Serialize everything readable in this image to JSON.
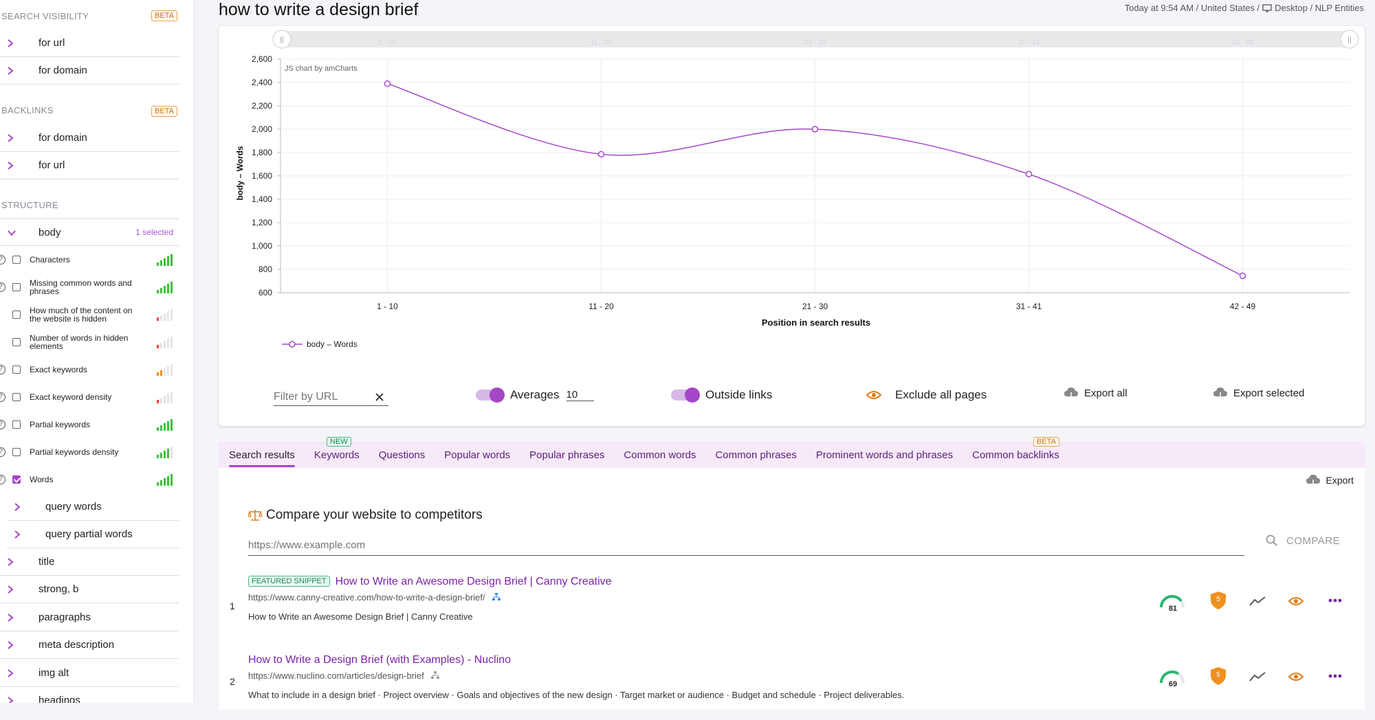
{
  "header": {
    "title": "how to write a design brief",
    "meta_time": "Today at 9:54 AM / United States /",
    "meta_device": "Desktop / NLP Entities"
  },
  "sidebar": {
    "search_visibility": {
      "title": "SEARCH VISIBILITY",
      "badge": "BETA",
      "items": [
        "for url",
        "for domain"
      ]
    },
    "backlinks": {
      "title": "BACKLINKS",
      "badge": "BETA",
      "items": [
        "for domain",
        "for url"
      ]
    },
    "structure": {
      "title": "STRUCTURE",
      "body": {
        "label": "body",
        "selected": "1 selected"
      },
      "metrics": [
        {
          "label": "Characters",
          "help": true,
          "checked": false,
          "level": 5,
          "color": "#3cc13b"
        },
        {
          "label": "Missing common words and phrases",
          "help": true,
          "checked": false,
          "level": 5,
          "color": "#3cc13b"
        },
        {
          "label": "How much of the content on the website is hidden",
          "help": false,
          "checked": false,
          "level": 1,
          "color": "#e8413b"
        },
        {
          "label": "Number of words in hidden elements",
          "help": false,
          "checked": false,
          "level": 1,
          "color": "#e8413b"
        },
        {
          "label": "Exact keywords",
          "help": true,
          "checked": false,
          "level": 2,
          "color": "#f08b1f"
        },
        {
          "label": "Exact keyword density",
          "help": true,
          "checked": false,
          "level": 1,
          "color": "#e8413b"
        },
        {
          "label": "Partial keywords",
          "help": true,
          "checked": false,
          "level": 5,
          "color": "#3cc13b"
        },
        {
          "label": "Partial keywords density",
          "help": true,
          "checked": false,
          "level": 4,
          "color": "#3cc13b"
        },
        {
          "label": "Words",
          "help": true,
          "checked": true,
          "level": 5,
          "color": "#3cc13b"
        }
      ],
      "sub_items": [
        "query words",
        "query partial words"
      ],
      "items": [
        "title",
        "strong, b",
        "paragraphs",
        "meta description",
        "img alt",
        "headings"
      ]
    }
  },
  "chart_data": {
    "type": "line",
    "credit": "JS chart by amCharts",
    "categories": [
      "1 - 10",
      "11 - 20",
      "21 - 30",
      "31 - 41",
      "42 - 49"
    ],
    "series": [
      {
        "name": "body – Words",
        "values": [
          2390,
          1785,
          2000,
          1615,
          745
        ],
        "color": "#a646c8"
      }
    ],
    "xlabel": "Position in search results",
    "ylabel": "body – Words",
    "ylim": [
      600,
      2600
    ],
    "yticks": [
      "600",
      "800",
      "1,000",
      "1,200",
      "1,400",
      "1,600",
      "1,800",
      "2,000",
      "2,200",
      "2,400",
      "2,600"
    ],
    "grid": true,
    "legend": "bottom-left"
  },
  "controls": {
    "filter_placeholder": "Filter by URL",
    "averages_label": "Averages",
    "averages_value": "10",
    "outside_links_label": "Outside links",
    "exclude_label": "Exclude all pages",
    "export_all": "Export all",
    "export_selected": "Export selected"
  },
  "tabs": [
    {
      "label": "Search results",
      "active": true
    },
    {
      "label": "Keywords",
      "badge": "NEW"
    },
    {
      "label": "Questions"
    },
    {
      "label": "Popular words"
    },
    {
      "label": "Popular phrases"
    },
    {
      "label": "Common words"
    },
    {
      "label": "Common phrases"
    },
    {
      "label": "Prominent words and phrases"
    },
    {
      "label": "Common backlinks",
      "badge": "BETA"
    }
  ],
  "results_section": {
    "export": "Export",
    "compare_title": "Compare your website to competitors",
    "compare_placeholder": "https://www.example.com",
    "compare_button": "COMPARE"
  },
  "results": [
    {
      "num": "1",
      "badge": "FEATURED SNIPPET",
      "title": "How to Write an Awesome Design Brief | Canny Creative",
      "url": "https://www.canny-creative.com/how-to-write-a-design-brief/",
      "desc": "How to Write an Awesome Design Brief | Canny Creative",
      "score": "81",
      "shield": "5"
    },
    {
      "num": "2",
      "title": "How to Write a Design Brief (with Examples) - Nuclino",
      "url": "https://www.nuclino.com/articles/design-brief",
      "desc": "What to include in a design brief · Project overview · Goals and objectives of the new design · Target market or audience · Budget and schedule · Project deliverables.",
      "score": "69",
      "shield": "5"
    }
  ]
}
